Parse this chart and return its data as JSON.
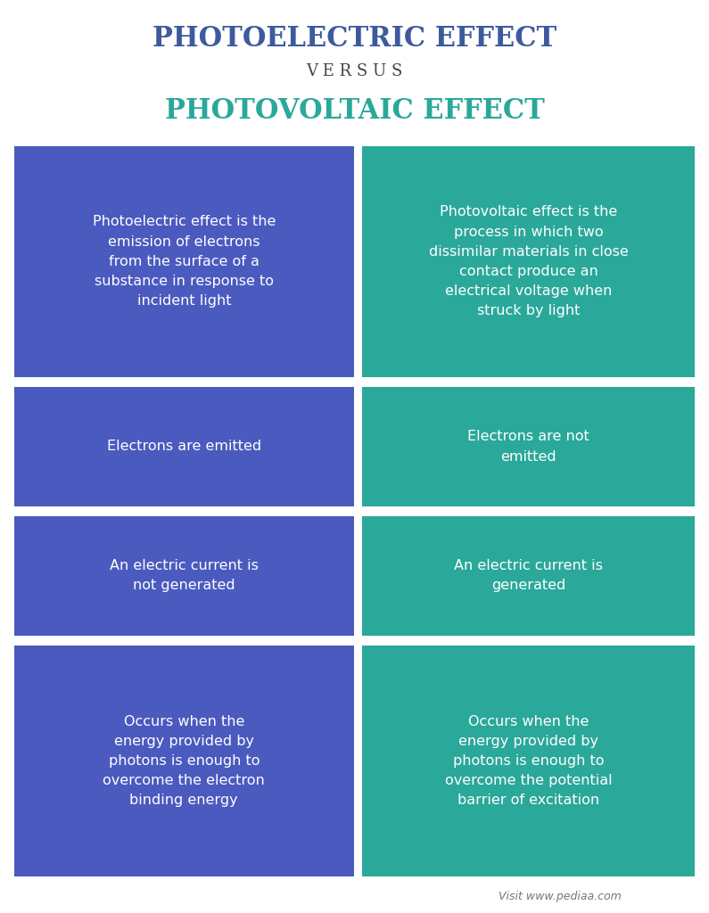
{
  "title1": "PHOTOELECTRIC EFFECT",
  "versus": "V E R S U S",
  "title2": "PHOTOVOLTAIC EFFECT",
  "title1_color": "#3d5a9e",
  "versus_color": "#444444",
  "title2_color": "#2aa89a",
  "left_bg": "#4a5abf",
  "right_bg": "#2aa89a",
  "text_color": "#ffffff",
  "watermark": "Visit www.pediaa.com",
  "watermark_color": "#777777",
  "left_cells": [
    "Photoelectric effect is the\nemission of electrons\nfrom the surface of a\nsubstance in response to\nincident light",
    "Electrons are emitted",
    "An electric current is\nnot generated",
    "Occurs when the\nenergy provided by\nphotons is enough to\novercome the electron\nbinding energy"
  ],
  "right_cells": [
    "Photovoltaic effect is the\nprocess in which two\ndissimilar materials in close\ncontact produce an\nelectrical voltage when\nstruck by light",
    "Electrons are not\nemitted",
    "An electric current is\ngenerated",
    "Occurs when the\nenergy provided by\nphotons is enough to\novercome the potential\nbarrier of excitation"
  ],
  "fig_width": 7.95,
  "fig_height": 10.24,
  "dpi": 100
}
